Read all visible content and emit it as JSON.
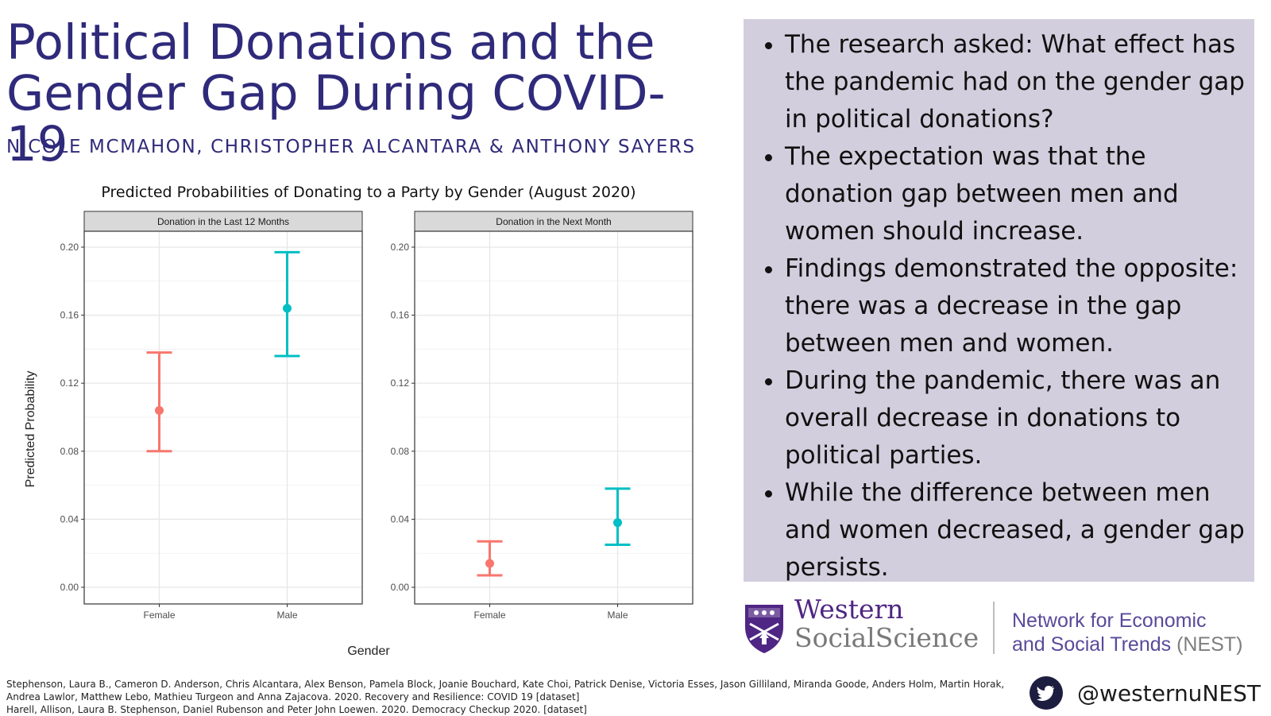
{
  "header": {
    "title": "Political Donations and the Gender Gap During COVID-19",
    "authors": "NICOLE MCMAHON, CHRISTOPHER ALCANTARA & ANTHONY SAYERS"
  },
  "bullets": [
    "The research asked: What effect has the pandemic had on the gender gap in political donations?",
    "The expectation was that the donation gap between men and women should increase.",
    "Findings demonstrated the opposite: there was a decrease in the gap between men and women.",
    "During the pandemic, there was an overall decrease in donations to political parties.",
    "While the difference between men and women decreased, a gender gap persists."
  ],
  "logos": {
    "western_name": "Western",
    "western_sub": "SocialScience",
    "nest_line1": "Network for Economic",
    "nest_line2": "and Social Trends",
    "nest_abbr": "(NEST)"
  },
  "references": [
    "Stephenson, Laura B., Cameron D. Anderson, Chris Alcantara, Alex Benson, Pamela Block, Joanie Bouchard, Kate Choi, Patrick Denise, Victoria Esses, Jason Gilliland, Miranda Goode, Anders Holm, Martin Horak, Andrea Lawlor, Matthew Lebo, Mathieu Turgeon and Anna Zajacova. 2020. Recovery and Resilience: COVID 19 [dataset]",
    "Harell, Allison, Laura B. Stephenson, Daniel Rubenson and Peter John Loewen. 2020. Democracy Checkup 2020. [dataset]"
  ],
  "social": {
    "icon": "twitter-bird-icon",
    "handle": "@westernuNEST"
  },
  "colors": {
    "title": "#2f2a7a",
    "panel_bg": "#d3cedd",
    "female": "#f8766d",
    "male": "#00bfc4"
  },
  "chart_data": {
    "type": "scatter",
    "title": "Predicted Probabilities of Donating to a Party by Gender (August 2020)",
    "xlabel": "Gender",
    "ylabel": "Predicted Probability",
    "categories": [
      "Female",
      "Male"
    ],
    "ylim": [
      0,
      0.2
    ],
    "yticks": [
      "0.00",
      "0.04",
      "0.08",
      "0.12",
      "0.16",
      "0.20"
    ],
    "grid": true,
    "panels": [
      {
        "title": "Donation in the Last 12 Months",
        "points": [
          {
            "x": "Female",
            "y": 0.104,
            "low": 0.08,
            "high": 0.138
          },
          {
            "x": "Male",
            "y": 0.164,
            "low": 0.136,
            "high": 0.197
          }
        ]
      },
      {
        "title": "Donation in the Next Month",
        "points": [
          {
            "x": "Female",
            "y": 0.014,
            "low": 0.007,
            "high": 0.027
          },
          {
            "x": "Male",
            "y": 0.038,
            "low": 0.025,
            "high": 0.058
          }
        ]
      }
    ]
  }
}
